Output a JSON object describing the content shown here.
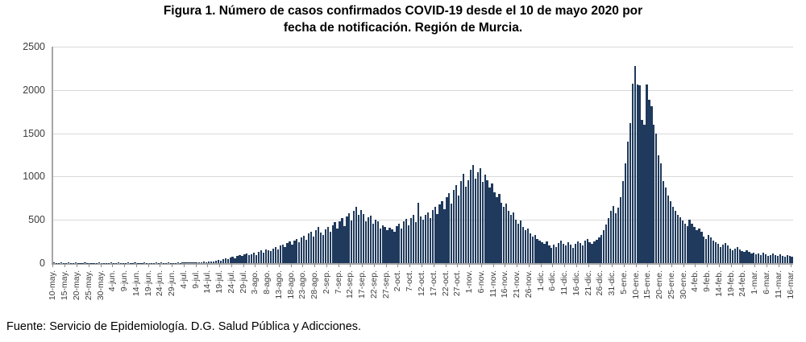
{
  "title": {
    "line1": "Figura 1. Número de casos confirmados COVID-19 desde el 10 de mayo 2020 por",
    "line2": "fecha de notificación. Región de Murcia."
  },
  "footer": "Fuente: Servicio de Epidemiología. D.G. Salud Pública y Adicciones.",
  "chart_data": {
    "type": "bar",
    "title": "Figura 1. Número de casos confirmados COVID-19 desde el 10 de mayo 2020 por fecha de notificación. Región de Murcia.",
    "xlabel": "",
    "ylabel": "",
    "ylim": [
      0,
      2500
    ],
    "y_ticks": [
      0,
      500,
      1000,
      1500,
      2000,
      2500
    ],
    "grid": true,
    "legend": false,
    "bar_color": "#1f3a5c",
    "gridline_color": "#d9d9d9",
    "axis_color": "#a6a6a6",
    "x_tick_interval_days": 5,
    "x_tick_labels": [
      "10-may.",
      "15-may.",
      "20-may.",
      "25-may.",
      "30-may.",
      "4-jun.",
      "9-jun.",
      "14-jun.",
      "19-jun.",
      "24-jun.",
      "29-jun.",
      "4-jul.",
      "9-jul.",
      "14-jul.",
      "19-jul.",
      "24-jul.",
      "29-jul.",
      "3-ago.",
      "8-ago.",
      "13-ago.",
      "18-ago.",
      "23-ago.",
      "28-ago.",
      "2-sep.",
      "7-sep.",
      "12-sep.",
      "17-sep.",
      "22-sep.",
      "27-sep.",
      "2-oct.",
      "7-oct.",
      "12-oct.",
      "17-oct.",
      "22-oct.",
      "27-oct.",
      "1-nov.",
      "6-nov.",
      "11-nov.",
      "16-nov.",
      "21-nov.",
      "26-nov.",
      "1-dic.",
      "6-dic.",
      "11-dic.",
      "16-dic.",
      "21-dic.",
      "26-dic.",
      "31-dic.",
      "5-ene.",
      "10-ene.",
      "15-ene.",
      "20-ene.",
      "25-ene.",
      "30-ene.",
      "4-feb.",
      "9-feb.",
      "14-feb.",
      "19-feb.",
      "24-feb.",
      "1-mar.",
      "6-mar.",
      "11-mar.",
      "16-mar."
    ],
    "values": [
      5,
      3,
      4,
      6,
      2,
      3,
      5,
      4,
      3,
      6,
      4,
      2,
      3,
      5,
      4,
      3,
      2,
      4,
      3,
      5,
      4,
      3,
      4,
      3,
      5,
      2,
      4,
      6,
      3,
      4,
      2,
      5,
      3,
      4,
      6,
      3,
      2,
      4,
      5,
      3,
      4,
      2,
      3,
      5,
      4,
      6,
      3,
      4,
      5,
      2,
      4,
      3,
      6,
      4,
      8,
      5,
      7,
      9,
      6,
      10,
      8,
      12,
      10,
      15,
      12,
      18,
      22,
      20,
      28,
      35,
      30,
      45,
      55,
      50,
      65,
      75,
      60,
      80,
      95,
      85,
      100,
      110,
      90,
      105,
      120,
      95,
      130,
      145,
      125,
      160,
      150,
      140,
      170,
      185,
      160,
      200,
      215,
      190,
      230,
      250,
      210,
      260,
      280,
      240,
      300,
      320,
      270,
      340,
      360,
      310,
      380,
      420,
      350,
      330,
      390,
      420,
      360,
      440,
      470,
      400,
      480,
      520,
      430,
      540,
      580,
      490,
      600,
      650,
      560,
      610,
      570,
      480,
      530,
      550,
      460,
      500,
      480,
      400,
      440,
      420,
      380,
      410,
      390,
      360,
      430,
      460,
      400,
      480,
      510,
      440,
      520,
      560,
      470,
      700,
      540,
      500,
      560,
      590,
      520,
      610,
      650,
      570,
      680,
      720,
      620,
      760,
      810,
      690,
      850,
      900,
      780,
      950,
      1030,
      880,
      960,
      1080,
      1130,
      980,
      1050,
      1100,
      940,
      1020,
      960,
      870,
      920,
      820,
      760,
      800,
      700,
      650,
      690,
      600,
      560,
      590,
      500,
      460,
      490,
      420,
      380,
      400,
      340,
      310,
      330,
      280,
      260,
      240,
      220,
      250,
      200,
      180,
      210,
      190,
      230,
      260,
      220,
      200,
      240,
      210,
      180,
      220,
      250,
      230,
      200,
      260,
      280,
      240,
      220,
      250,
      270,
      300,
      330,
      380,
      450,
      520,
      600,
      660,
      580,
      640,
      760,
      950,
      1150,
      1400,
      1620,
      2070,
      2280,
      2060,
      2050,
      1650,
      1600,
      2060,
      1890,
      1810,
      1600,
      1500,
      1250,
      1150,
      950,
      870,
      780,
      720,
      650,
      600,
      560,
      530,
      490,
      460,
      430,
      500,
      460,
      420,
      380,
      400,
      360,
      310,
      280,
      330,
      300,
      260,
      240,
      220,
      190,
      210,
      230,
      200,
      170,
      150,
      170,
      190,
      160,
      140,
      130,
      150,
      130,
      110,
      120,
      100,
      110,
      90,
      120,
      100,
      85,
      95,
      110,
      90,
      80,
      100,
      85,
      75,
      90,
      80,
      70
    ]
  }
}
